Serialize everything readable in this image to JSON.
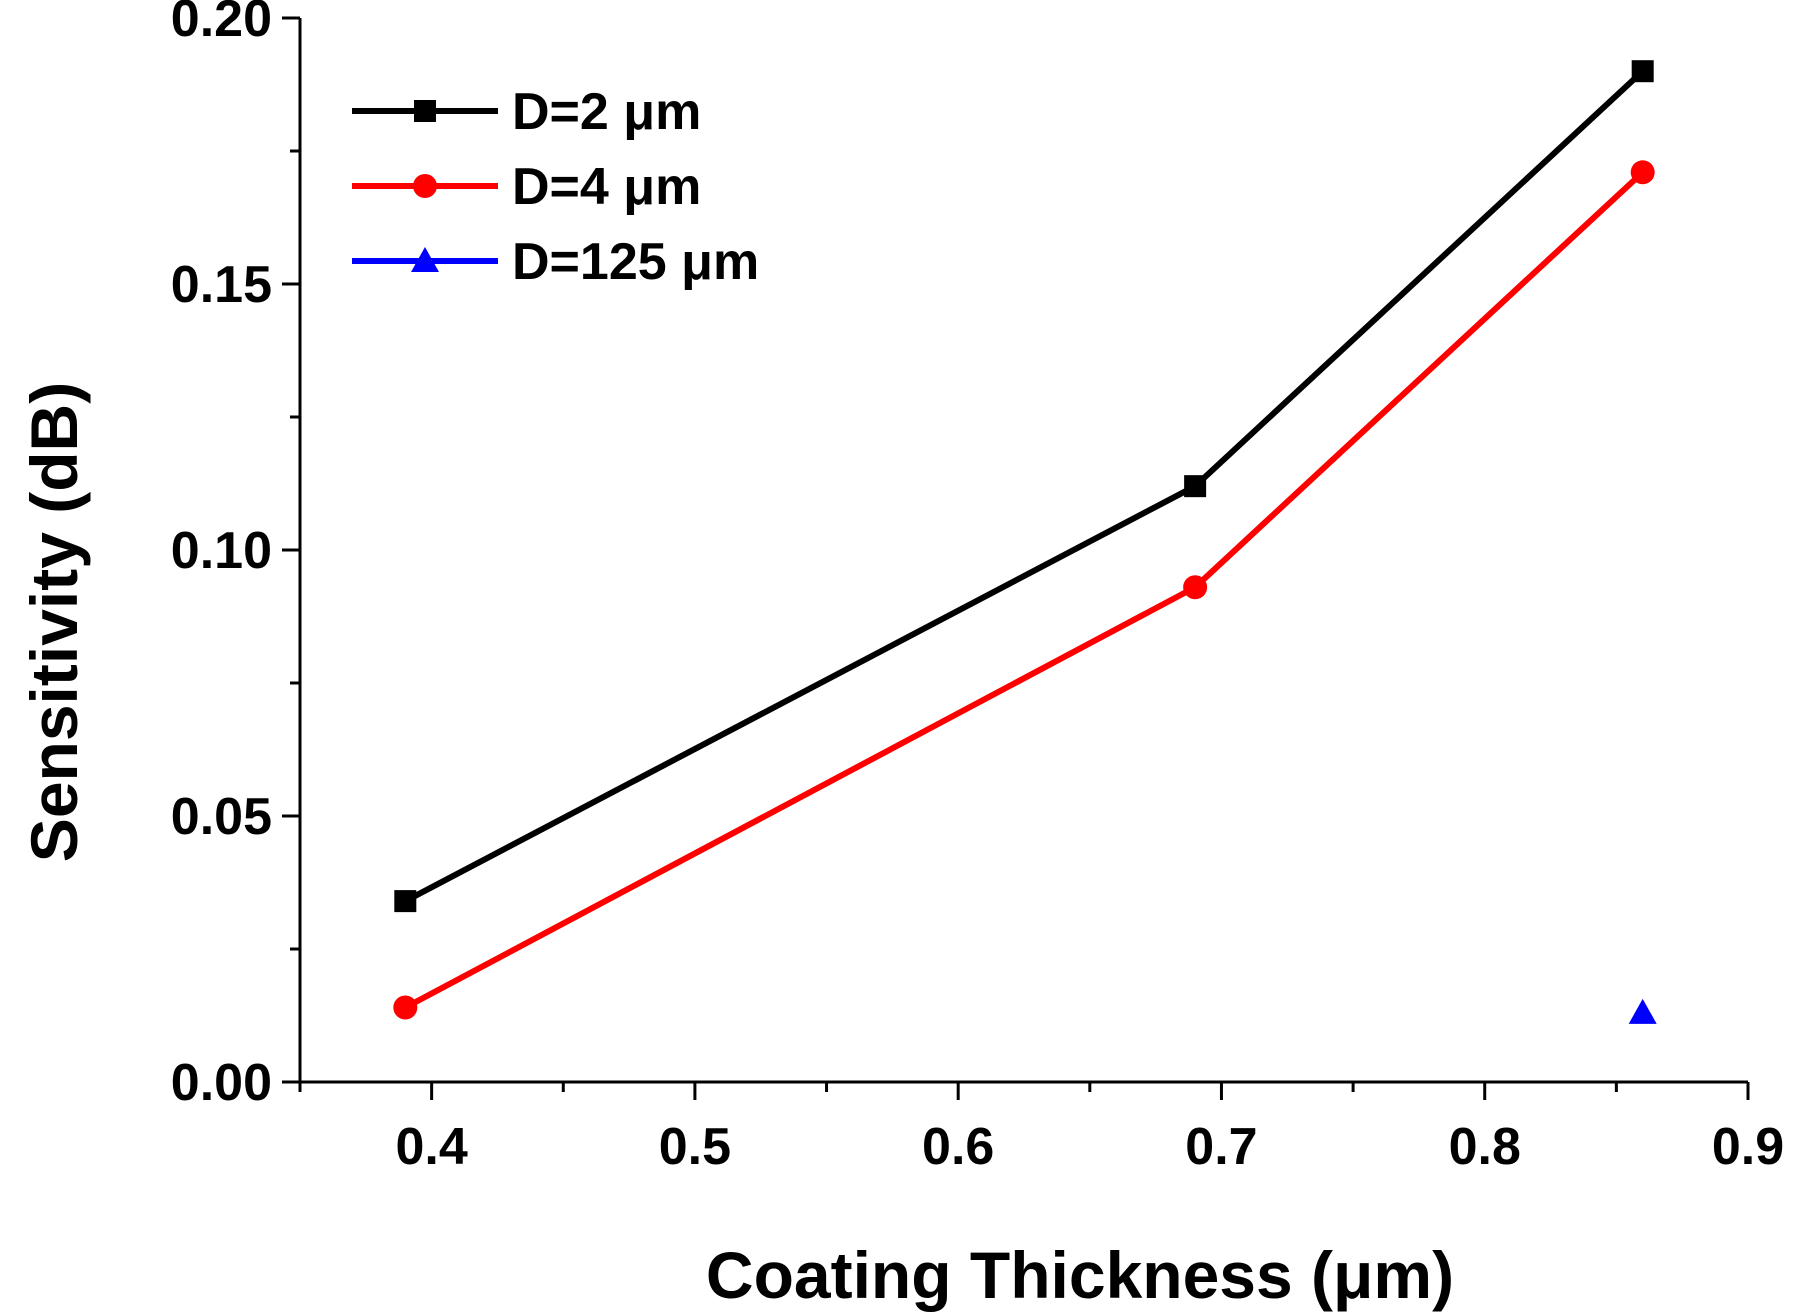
{
  "chart_data": {
    "type": "line",
    "xlabel": "Coating Thickness (μm)",
    "ylabel": "Sensitivity (dB)",
    "xlim": [
      0.35,
      0.9
    ],
    "ylim": [
      0.0,
      0.2
    ],
    "x_ticks": [
      0.4,
      0.5,
      0.6,
      0.7,
      0.8,
      0.9
    ],
    "x_tick_labels": [
      "0.4",
      "0.5",
      "0.6",
      "0.7",
      "0.8",
      "0.9"
    ],
    "y_ticks": [
      0.0,
      0.05,
      0.1,
      0.15,
      0.2
    ],
    "y_tick_labels": [
      "0.00",
      "0.05",
      "0.10",
      "0.15",
      "0.20"
    ],
    "grid": false,
    "legend_position": "top-left",
    "series": [
      {
        "name": "D=2 μm",
        "color": "#000000",
        "marker": "square",
        "x": [
          0.39,
          0.69,
          0.86
        ],
        "y": [
          0.034,
          0.112,
          0.19
        ]
      },
      {
        "name": "D=4 μm",
        "color": "#ff0000",
        "marker": "circle",
        "x": [
          0.39,
          0.69,
          0.86
        ],
        "y": [
          0.014,
          0.093,
          0.171
        ]
      },
      {
        "name": "D=125 μm",
        "color": "#0000ff",
        "marker": "triangle",
        "x": [
          0.86
        ],
        "y": [
          0.013
        ]
      }
    ]
  }
}
